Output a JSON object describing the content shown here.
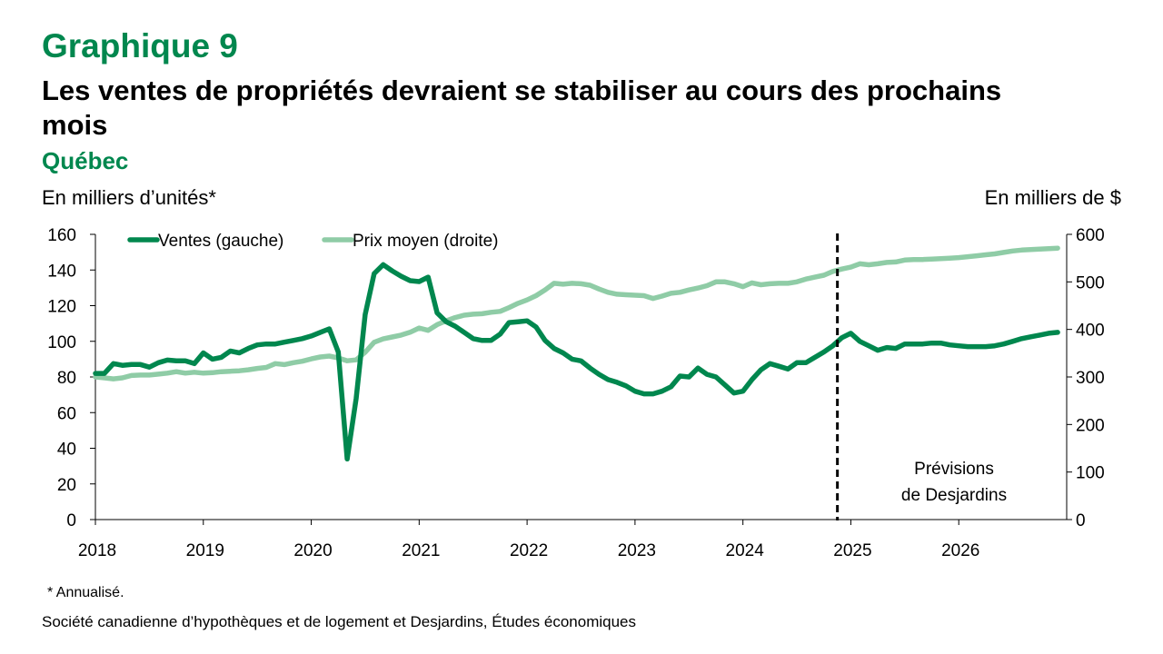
{
  "header": {
    "number": "Graphique 9",
    "title": "Les ventes de propriétés devraient se stabiliser au cours des prochains mois",
    "subtitle": "Québec"
  },
  "axis_units": {
    "left": "En milliers d’unités*",
    "right": "En milliers de $"
  },
  "footer": {
    "note": "* Annualisé.",
    "source": "Société canadienne d’hypothèques et de logement et Desjardins, Études économiques"
  },
  "colors": {
    "accent": "#00874e",
    "ventes": "#00874e",
    "prix": "#8fcca6"
  },
  "chart_data": {
    "type": "line",
    "x_labels": [
      "2018",
      "2019",
      "2020",
      "2021",
      "2022",
      "2023",
      "2024",
      "2025",
      "2026"
    ],
    "x_start": "2018-01",
    "x_end": "2026-12",
    "ylim_left": [
      0,
      160
    ],
    "yticks_left": [
      "0",
      "20",
      "40",
      "60",
      "80",
      "100",
      "120",
      "140",
      "160"
    ],
    "ylim_right": [
      0,
      600
    ],
    "yticks_right": [
      "0",
      "100",
      "200",
      "300",
      "400",
      "500",
      "600"
    ],
    "forecast_start": "2024-11",
    "forecast_label": [
      "Prévisions",
      "de Desjardins"
    ],
    "legend_position": "top-left",
    "grid": false,
    "series": [
      {
        "name": "Ventes (gauche)",
        "axis": "left",
        "color": "#00874e",
        "points": [
          [
            "2018-01",
            82
          ],
          [
            "2018-02",
            82
          ],
          [
            "2018-03",
            87.5
          ],
          [
            "2018-04",
            86.5
          ],
          [
            "2018-05",
            87
          ],
          [
            "2018-06",
            87
          ],
          [
            "2018-07",
            85.5
          ],
          [
            "2018-08",
            88
          ],
          [
            "2018-09",
            89.5
          ],
          [
            "2018-10",
            89
          ],
          [
            "2018-11",
            89
          ],
          [
            "2018-12",
            87.5
          ],
          [
            "2019-01",
            93.5
          ],
          [
            "2019-02",
            90
          ],
          [
            "2019-03",
            91
          ],
          [
            "2019-04",
            94.5
          ],
          [
            "2019-05",
            93.5
          ],
          [
            "2019-06",
            96
          ],
          [
            "2019-07",
            98
          ],
          [
            "2019-08",
            98.5
          ],
          [
            "2019-09",
            98.5
          ],
          [
            "2019-10",
            99.5
          ],
          [
            "2019-11",
            100.5
          ],
          [
            "2019-12",
            101.5
          ],
          [
            "2020-01",
            103
          ],
          [
            "2020-02",
            105
          ],
          [
            "2020-03",
            107
          ],
          [
            "2020-04",
            94
          ],
          [
            "2020-05",
            34
          ],
          [
            "2020-06",
            68
          ],
          [
            "2020-07",
            115
          ],
          [
            "2020-08",
            138
          ],
          [
            "2020-09",
            143
          ],
          [
            "2020-10",
            139.5
          ],
          [
            "2020-11",
            136.5
          ],
          [
            "2020-12",
            134
          ],
          [
            "2021-01",
            133.5
          ],
          [
            "2021-02",
            136
          ],
          [
            "2021-03",
            116
          ],
          [
            "2021-04",
            111
          ],
          [
            "2021-05",
            108.5
          ],
          [
            "2021-06",
            105
          ],
          [
            "2021-07",
            101.5
          ],
          [
            "2021-08",
            100.5
          ],
          [
            "2021-09",
            100.5
          ],
          [
            "2021-10",
            104
          ],
          [
            "2021-11",
            110.5
          ],
          [
            "2021-12",
            111
          ],
          [
            "2022-01",
            111.5
          ],
          [
            "2022-02",
            108
          ],
          [
            "2022-03",
            100.5
          ],
          [
            "2022-04",
            96
          ],
          [
            "2022-05",
            93.5
          ],
          [
            "2022-06",
            90
          ],
          [
            "2022-07",
            89
          ],
          [
            "2022-08",
            85
          ],
          [
            "2022-09",
            81.5
          ],
          [
            "2022-10",
            78.5
          ],
          [
            "2022-11",
            77
          ],
          [
            "2022-12",
            75
          ],
          [
            "2023-01",
            72
          ],
          [
            "2023-02",
            70.5
          ],
          [
            "2023-03",
            70.5
          ],
          [
            "2023-04",
            72
          ],
          [
            "2023-05",
            74.5
          ],
          [
            "2023-06",
            80.5
          ],
          [
            "2023-07",
            80
          ],
          [
            "2023-08",
            85
          ],
          [
            "2023-09",
            81.5
          ],
          [
            "2023-10",
            80
          ],
          [
            "2023-11",
            75.5
          ],
          [
            "2023-12",
            71
          ],
          [
            "2024-01",
            72
          ],
          [
            "2024-02",
            78.5
          ],
          [
            "2024-03",
            84
          ],
          [
            "2024-04",
            87.5
          ],
          [
            "2024-05",
            86
          ],
          [
            "2024-06",
            84.5
          ],
          [
            "2024-07",
            88
          ],
          [
            "2024-08",
            88
          ],
          [
            "2024-09",
            91
          ],
          [
            "2024-10",
            94
          ],
          [
            "2024-11",
            97.5
          ],
          [
            "2024-12",
            102
          ],
          [
            "2025-01",
            104.5
          ],
          [
            "2025-02",
            100
          ],
          [
            "2025-03",
            97.5
          ],
          [
            "2025-04",
            95
          ],
          [
            "2025-05",
            96.5
          ],
          [
            "2025-06",
            96
          ],
          [
            "2025-07",
            98.5
          ],
          [
            "2025-08",
            98.5
          ],
          [
            "2025-09",
            98.5
          ],
          [
            "2025-10",
            99
          ],
          [
            "2025-11",
            99
          ],
          [
            "2025-12",
            98
          ],
          [
            "2026-01",
            97.5
          ],
          [
            "2026-02",
            97
          ],
          [
            "2026-03",
            97
          ],
          [
            "2026-04",
            97
          ],
          [
            "2026-05",
            97.5
          ],
          [
            "2026-06",
            98.5
          ],
          [
            "2026-07",
            100
          ],
          [
            "2026-08",
            101.5
          ],
          [
            "2026-09",
            102.5
          ],
          [
            "2026-10",
            103.5
          ],
          [
            "2026-11",
            104.5
          ],
          [
            "2026-12",
            105
          ]
        ]
      },
      {
        "name": "Prix moyen (droite)",
        "axis": "right",
        "color": "#8fcca6",
        "points": [
          [
            "2018-01",
            300
          ],
          [
            "2018-02",
            298
          ],
          [
            "2018-03",
            296
          ],
          [
            "2018-04",
            298
          ],
          [
            "2018-05",
            303
          ],
          [
            "2018-06",
            304
          ],
          [
            "2018-07",
            304
          ],
          [
            "2018-08",
            306
          ],
          [
            "2018-09",
            308
          ],
          [
            "2018-10",
            311
          ],
          [
            "2018-11",
            308
          ],
          [
            "2018-12",
            310
          ],
          [
            "2019-01",
            308
          ],
          [
            "2019-02",
            309
          ],
          [
            "2019-03",
            311
          ],
          [
            "2019-04",
            312
          ],
          [
            "2019-05",
            313
          ],
          [
            "2019-06",
            315
          ],
          [
            "2019-07",
            318
          ],
          [
            "2019-08",
            320
          ],
          [
            "2019-09",
            328
          ],
          [
            "2019-10",
            326
          ],
          [
            "2019-11",
            330
          ],
          [
            "2019-12",
            333
          ],
          [
            "2020-01",
            338
          ],
          [
            "2020-02",
            342
          ],
          [
            "2020-03",
            344
          ],
          [
            "2020-04",
            340
          ],
          [
            "2020-05",
            334
          ],
          [
            "2020-06",
            336
          ],
          [
            "2020-07",
            352
          ],
          [
            "2020-08",
            373
          ],
          [
            "2020-09",
            380
          ],
          [
            "2020-10",
            384
          ],
          [
            "2020-11",
            388
          ],
          [
            "2020-12",
            394
          ],
          [
            "2021-01",
            403
          ],
          [
            "2021-02",
            398
          ],
          [
            "2021-03",
            410
          ],
          [
            "2021-04",
            418
          ],
          [
            "2021-05",
            425
          ],
          [
            "2021-06",
            430
          ],
          [
            "2021-07",
            432
          ],
          [
            "2021-08",
            433
          ],
          [
            "2021-09",
            436
          ],
          [
            "2021-10",
            438
          ],
          [
            "2021-11",
            446
          ],
          [
            "2021-12",
            455
          ],
          [
            "2022-01",
            462
          ],
          [
            "2022-02",
            471
          ],
          [
            "2022-03",
            483
          ],
          [
            "2022-04",
            497
          ],
          [
            "2022-05",
            495
          ],
          [
            "2022-06",
            497
          ],
          [
            "2022-07",
            496
          ],
          [
            "2022-08",
            493
          ],
          [
            "2022-09",
            485
          ],
          [
            "2022-10",
            478
          ],
          [
            "2022-11",
            474
          ],
          [
            "2022-12",
            473
          ],
          [
            "2023-01",
            472
          ],
          [
            "2023-02",
            471
          ],
          [
            "2023-03",
            465
          ],
          [
            "2023-04",
            470
          ],
          [
            "2023-05",
            476
          ],
          [
            "2023-06",
            478
          ],
          [
            "2023-07",
            483
          ],
          [
            "2023-08",
            487
          ],
          [
            "2023-09",
            492
          ],
          [
            "2023-10",
            500
          ],
          [
            "2023-11",
            500
          ],
          [
            "2023-12",
            496
          ],
          [
            "2024-01",
            490
          ],
          [
            "2024-02",
            498
          ],
          [
            "2024-03",
            494
          ],
          [
            "2024-04",
            496
          ],
          [
            "2024-05",
            497
          ],
          [
            "2024-06",
            497
          ],
          [
            "2024-07",
            500
          ],
          [
            "2024-08",
            506
          ],
          [
            "2024-09",
            510
          ],
          [
            "2024-10",
            514
          ],
          [
            "2024-11",
            522
          ],
          [
            "2024-12",
            527
          ],
          [
            "2025-01",
            531
          ],
          [
            "2025-02",
            538
          ],
          [
            "2025-03",
            536
          ],
          [
            "2025-04",
            538
          ],
          [
            "2025-05",
            541
          ],
          [
            "2025-06",
            542
          ],
          [
            "2025-07",
            546
          ],
          [
            "2025-08",
            547
          ],
          [
            "2025-09",
            547
          ],
          [
            "2025-10",
            548
          ],
          [
            "2025-11",
            549
          ],
          [
            "2025-12",
            550
          ],
          [
            "2026-01",
            551
          ],
          [
            "2026-02",
            553
          ],
          [
            "2026-03",
            555
          ],
          [
            "2026-04",
            557
          ],
          [
            "2026-05",
            559
          ],
          [
            "2026-06",
            562
          ],
          [
            "2026-07",
            565
          ],
          [
            "2026-08",
            567
          ],
          [
            "2026-09",
            568
          ],
          [
            "2026-10",
            569
          ],
          [
            "2026-11",
            570
          ],
          [
            "2026-12",
            571
          ]
        ]
      }
    ]
  }
}
